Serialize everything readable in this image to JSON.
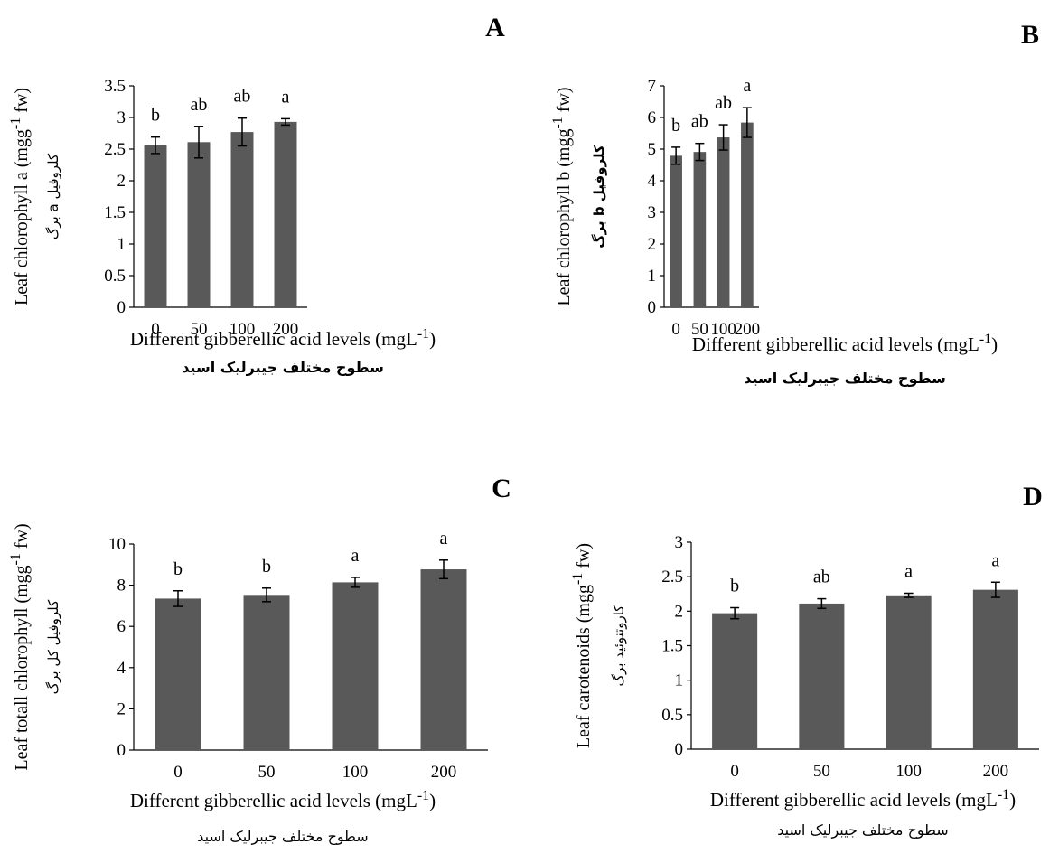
{
  "chart_data": [
    {
      "panel": "A",
      "type": "bar",
      "categories": [
        "0",
        "50",
        "100",
        "200"
      ],
      "values": [
        2.56,
        2.61,
        2.77,
        2.93
      ],
      "errors": [
        0.13,
        0.25,
        0.22,
        0.05
      ],
      "significance": [
        "b",
        "ab",
        "ab",
        "a"
      ],
      "ylim": [
        0,
        3.5
      ],
      "yticks": [
        "0",
        "0.5",
        "1",
        "1.5",
        "2",
        "2.5",
        "3",
        "3.5"
      ],
      "ylabel_main": "Leaf chlorophyll a (mgg",
      "ylabel_sup": "-1",
      "ylabel_end": " fw)",
      "ylabel_fa": "کلروفیل a برگ",
      "xlabel_main": "Different gibberellic acid levels (mgL",
      "xlabel_sup": "-1",
      "xlabel_end": ")",
      "xlabel_fa": "سطوح مختلف جیبرلیک اسید",
      "bar_color": "#595959"
    },
    {
      "panel": "B",
      "type": "bar",
      "categories": [
        "0",
        "50",
        "100",
        "200"
      ],
      "values": [
        4.79,
        4.91,
        5.37,
        5.84
      ],
      "errors": [
        0.27,
        0.27,
        0.4,
        0.47
      ],
      "significance": [
        "b",
        "ab",
        "ab",
        "a"
      ],
      "ylim": [
        0,
        7
      ],
      "yticks": [
        "0",
        "1",
        "2",
        "3",
        "4",
        "5",
        "6",
        "7"
      ],
      "ylabel_main": "Leaf chlorophyll b (mgg",
      "ylabel_sup": "-1",
      "ylabel_end": " fw)",
      "ylabel_fa": "کلروفیل b برگ",
      "xlabel_main": "Different gibberellic acid levels (mgL",
      "xlabel_sup": "-1",
      "xlabel_end": ")",
      "xlabel_fa": "سطوح مختلف جیبرلیک اسید",
      "bar_color": "#595959"
    },
    {
      "panel": "C",
      "type": "bar",
      "categories": [
        "0",
        "50",
        "100",
        "200"
      ],
      "values": [
        7.35,
        7.53,
        8.14,
        8.77
      ],
      "errors": [
        0.38,
        0.33,
        0.24,
        0.45
      ],
      "significance": [
        "b",
        "b",
        "a",
        "a"
      ],
      "ylim": [
        0,
        10
      ],
      "yticks": [
        "0",
        "2",
        "4",
        "6",
        "8",
        "10"
      ],
      "ylabel_main": "Leaf totall chlorophyll  (mgg",
      "ylabel_sup": "-1",
      "ylabel_end": " fw)",
      "ylabel_fa": "کلروفیل کل برگ",
      "xlabel_main": "Different gibberellic acid levels (mgL",
      "xlabel_sup": "-1",
      "xlabel_end": ")",
      "xlabel_fa": "سطوح مختلف جیبرلیک اسید",
      "bar_color": "#595959"
    },
    {
      "panel": "D",
      "type": "bar",
      "categories": [
        "0",
        "50",
        "100",
        "200"
      ],
      "values": [
        1.97,
        2.11,
        2.23,
        2.31
      ],
      "errors": [
        0.08,
        0.07,
        0.03,
        0.11
      ],
      "significance": [
        "b",
        "ab",
        "a",
        "a"
      ],
      "ylim": [
        0,
        3
      ],
      "yticks": [
        "0",
        "0.5",
        "1",
        "1.5",
        "2",
        "2.5",
        "3"
      ],
      "ylabel_main": "Leaf carotenoids (mgg",
      "ylabel_sup": "-1",
      "ylabel_end": " fw)",
      "ylabel_fa": "کاروتنوئید برگ",
      "xlabel_main": "Different gibberellic acid levels (mgL",
      "xlabel_sup": "-1",
      "xlabel_end": ")",
      "xlabel_fa": "سطوح مختلف جیبرلیک اسید",
      "bar_color": "#595959"
    }
  ]
}
